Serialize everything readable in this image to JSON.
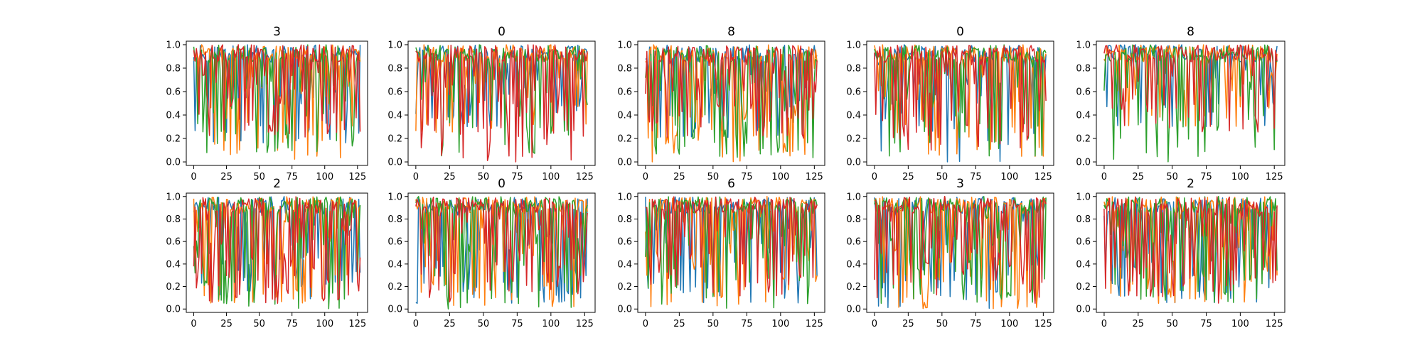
{
  "figure": {
    "background": "#ffffff",
    "axis_color": "#000000"
  },
  "chart_data": [
    {
      "type": "line",
      "title": "3",
      "x_range": [
        0,
        127
      ],
      "ylim": [
        0,
        1.0
      ],
      "x_ticks": [
        0,
        25,
        50,
        75,
        100,
        125
      ],
      "y_ticks": [
        0.0,
        0.2,
        0.4,
        0.6,
        0.8,
        1.0
      ],
      "x_tick_labels": [
        "0",
        "25",
        "50",
        "75",
        "100",
        "125"
      ],
      "y_tick_labels": [
        "0.0",
        "0.2",
        "0.4",
        "0.6",
        "0.8",
        "1.0"
      ],
      "series": [
        {
          "color": "#1f77b4",
          "min": 0.15,
          "low_prob": 0.35,
          "seed": 11
        },
        {
          "color": "#ff7f0e",
          "min": 0.02,
          "low_prob": 0.3,
          "seed": 12
        },
        {
          "color": "#2ca02c",
          "min": 0.04,
          "low_prob": 0.45,
          "seed": 13
        },
        {
          "color": "#d62728",
          "min": 0.2,
          "low_prob": 0.4,
          "seed": 14
        }
      ]
    },
    {
      "type": "line",
      "title": "0",
      "x_range": [
        0,
        127
      ],
      "ylim": [
        0,
        1.0
      ],
      "x_ticks": [
        0,
        25,
        50,
        75,
        100,
        125
      ],
      "y_ticks": [
        0.0,
        0.2,
        0.4,
        0.6,
        0.8,
        1.0
      ],
      "x_tick_labels": [
        "0",
        "25",
        "50",
        "75",
        "100",
        "125"
      ],
      "y_tick_labels": [
        "0.0",
        "0.2",
        "0.4",
        "0.6",
        "0.8",
        "1.0"
      ],
      "series": [
        {
          "color": "#1f77b4",
          "min": 0.3,
          "low_prob": 0.35,
          "seed": 21
        },
        {
          "color": "#ff7f0e",
          "min": 0.25,
          "low_prob": 0.3,
          "seed": 22
        },
        {
          "color": "#2ca02c",
          "min": 0.05,
          "low_prob": 0.3,
          "seed": 23
        },
        {
          "color": "#d62728",
          "min": 0.0,
          "low_prob": 0.4,
          "seed": 24
        }
      ]
    },
    {
      "type": "line",
      "title": "8",
      "x_range": [
        0,
        127
      ],
      "ylim": [
        0,
        1.0
      ],
      "x_ticks": [
        0,
        25,
        50,
        75,
        100,
        125
      ],
      "y_ticks": [
        0.0,
        0.2,
        0.4,
        0.6,
        0.8,
        1.0
      ],
      "x_tick_labels": [
        "0",
        "25",
        "50",
        "75",
        "100",
        "125"
      ],
      "y_tick_labels": [
        "0.0",
        "0.2",
        "0.4",
        "0.6",
        "0.8",
        "1.0"
      ],
      "series": [
        {
          "color": "#1f77b4",
          "min": 0.2,
          "low_prob": 0.4,
          "seed": 31
        },
        {
          "color": "#ff7f0e",
          "min": 0.0,
          "low_prob": 0.4,
          "seed": 32
        },
        {
          "color": "#2ca02c",
          "min": 0.03,
          "low_prob": 0.45,
          "seed": 33
        },
        {
          "color": "#d62728",
          "min": 0.2,
          "low_prob": 0.45,
          "seed": 34
        }
      ]
    },
    {
      "type": "line",
      "title": "0",
      "x_range": [
        0,
        127
      ],
      "ylim": [
        0,
        1.0
      ],
      "x_ticks": [
        0,
        25,
        50,
        75,
        100,
        125
      ],
      "y_ticks": [
        0.0,
        0.2,
        0.4,
        0.6,
        0.8,
        1.0
      ],
      "x_tick_labels": [
        "0",
        "25",
        "50",
        "75",
        "100",
        "125"
      ],
      "y_tick_labels": [
        "0.0",
        "0.2",
        "0.4",
        "0.6",
        "0.8",
        "1.0"
      ],
      "series": [
        {
          "color": "#1f77b4",
          "min": 0.0,
          "low_prob": 0.4,
          "seed": 41
        },
        {
          "color": "#ff7f0e",
          "min": 0.02,
          "low_prob": 0.35,
          "seed": 42
        },
        {
          "color": "#2ca02c",
          "min": 0.05,
          "low_prob": 0.3,
          "seed": 43
        },
        {
          "color": "#d62728",
          "min": 0.1,
          "low_prob": 0.4,
          "seed": 44
        }
      ]
    },
    {
      "type": "line",
      "title": "8",
      "x_range": [
        0,
        127
      ],
      "ylim": [
        0,
        1.0
      ],
      "x_ticks": [
        0,
        25,
        50,
        75,
        100,
        125
      ],
      "y_ticks": [
        0.0,
        0.2,
        0.4,
        0.6,
        0.8,
        1.0
      ],
      "x_tick_labels": [
        "0",
        "25",
        "50",
        "75",
        "100",
        "125"
      ],
      "y_tick_labels": [
        "0.0",
        "0.2",
        "0.4",
        "0.6",
        "0.8",
        "1.0"
      ],
      "series": [
        {
          "color": "#1f77b4",
          "min": 0.3,
          "low_prob": 0.3,
          "seed": 51
        },
        {
          "color": "#ff7f0e",
          "min": 0.3,
          "low_prob": 0.3,
          "seed": 52
        },
        {
          "color": "#2ca02c",
          "min": 0.0,
          "low_prob": 0.35,
          "seed": 53
        },
        {
          "color": "#d62728",
          "min": 0.25,
          "low_prob": 0.35,
          "seed": 54
        }
      ]
    },
    {
      "type": "line",
      "title": "2",
      "x_range": [
        0,
        127
      ],
      "ylim": [
        0,
        1.0
      ],
      "x_ticks": [
        0,
        25,
        50,
        75,
        100,
        125
      ],
      "y_ticks": [
        0.0,
        0.2,
        0.4,
        0.6,
        0.8,
        1.0
      ],
      "x_tick_labels": [
        "0",
        "25",
        "50",
        "75",
        "100",
        "125"
      ],
      "y_tick_labels": [
        "0.0",
        "0.2",
        "0.4",
        "0.6",
        "0.8",
        "1.0"
      ],
      "series": [
        {
          "color": "#1f77b4",
          "min": 0.05,
          "low_prob": 0.45,
          "seed": 61
        },
        {
          "color": "#ff7f0e",
          "min": 0.05,
          "low_prob": 0.4,
          "seed": 62
        },
        {
          "color": "#2ca02c",
          "min": 0.0,
          "low_prob": 0.45,
          "seed": 63
        },
        {
          "color": "#d62728",
          "min": 0.05,
          "low_prob": 0.5,
          "seed": 64
        }
      ]
    },
    {
      "type": "line",
      "title": "0",
      "x_range": [
        0,
        127
      ],
      "ylim": [
        0,
        1.0
      ],
      "x_ticks": [
        0,
        25,
        50,
        75,
        100,
        125
      ],
      "y_ticks": [
        0.0,
        0.2,
        0.4,
        0.6,
        0.8,
        1.0
      ],
      "x_tick_labels": [
        "0",
        "25",
        "50",
        "75",
        "100",
        "125"
      ],
      "y_tick_labels": [
        "0.0",
        "0.2",
        "0.4",
        "0.6",
        "0.8",
        "1.0"
      ],
      "series": [
        {
          "color": "#1f77b4",
          "min": 0.05,
          "low_prob": 0.45,
          "seed": 71
        },
        {
          "color": "#ff7f0e",
          "min": 0.02,
          "low_prob": 0.45,
          "seed": 72
        },
        {
          "color": "#2ca02c",
          "min": 0.0,
          "low_prob": 0.4,
          "seed": 73
        },
        {
          "color": "#d62728",
          "min": 0.05,
          "low_prob": 0.45,
          "seed": 74
        }
      ]
    },
    {
      "type": "line",
      "title": "6",
      "x_range": [
        0,
        127
      ],
      "ylim": [
        0,
        1.0
      ],
      "x_ticks": [
        0,
        25,
        50,
        75,
        100,
        125
      ],
      "y_ticks": [
        0.0,
        0.2,
        0.4,
        0.6,
        0.8,
        1.0
      ],
      "x_tick_labels": [
        "0",
        "25",
        "50",
        "75",
        "100",
        "125"
      ],
      "y_tick_labels": [
        "0.0",
        "0.2",
        "0.4",
        "0.6",
        "0.8",
        "1.0"
      ],
      "series": [
        {
          "color": "#1f77b4",
          "min": 0.05,
          "low_prob": 0.4,
          "seed": 81
        },
        {
          "color": "#ff7f0e",
          "min": 0.0,
          "low_prob": 0.4,
          "seed": 82
        },
        {
          "color": "#2ca02c",
          "min": 0.0,
          "low_prob": 0.35,
          "seed": 83
        },
        {
          "color": "#d62728",
          "min": 0.1,
          "low_prob": 0.4,
          "seed": 84
        }
      ]
    },
    {
      "type": "line",
      "title": "3",
      "x_range": [
        0,
        127
      ],
      "ylim": [
        0,
        1.0
      ],
      "x_ticks": [
        0,
        25,
        50,
        75,
        100,
        125
      ],
      "y_ticks": [
        0.0,
        0.2,
        0.4,
        0.6,
        0.8,
        1.0
      ],
      "x_tick_labels": [
        "0",
        "25",
        "50",
        "75",
        "100",
        "125"
      ],
      "y_tick_labels": [
        "0.0",
        "0.2",
        "0.4",
        "0.6",
        "0.8",
        "1.0"
      ],
      "series": [
        {
          "color": "#1f77b4",
          "min": 0.0,
          "low_prob": 0.45,
          "seed": 91
        },
        {
          "color": "#ff7f0e",
          "min": 0.0,
          "low_prob": 0.45,
          "seed": 92
        },
        {
          "color": "#2ca02c",
          "min": 0.05,
          "low_prob": 0.4,
          "seed": 93
        },
        {
          "color": "#d62728",
          "min": 0.05,
          "low_prob": 0.45,
          "seed": 94
        }
      ]
    },
    {
      "type": "line",
      "title": "2",
      "x_range": [
        0,
        127
      ],
      "ylim": [
        0,
        1.0
      ],
      "x_ticks": [
        0,
        25,
        50,
        75,
        100,
        125
      ],
      "y_ticks": [
        0.0,
        0.2,
        0.4,
        0.6,
        0.8,
        1.0
      ],
      "x_tick_labels": [
        "0",
        "25",
        "50",
        "75",
        "100",
        "125"
      ],
      "y_tick_labels": [
        "0.0",
        "0.2",
        "0.4",
        "0.6",
        "0.8",
        "1.0"
      ],
      "series": [
        {
          "color": "#1f77b4",
          "min": 0.05,
          "low_prob": 0.5,
          "seed": 101
        },
        {
          "color": "#ff7f0e",
          "min": 0.05,
          "low_prob": 0.5,
          "seed": 102
        },
        {
          "color": "#2ca02c",
          "min": 0.05,
          "low_prob": 0.45,
          "seed": 103
        },
        {
          "color": "#d62728",
          "min": 0.05,
          "low_prob": 0.5,
          "seed": 104
        }
      ]
    }
  ]
}
